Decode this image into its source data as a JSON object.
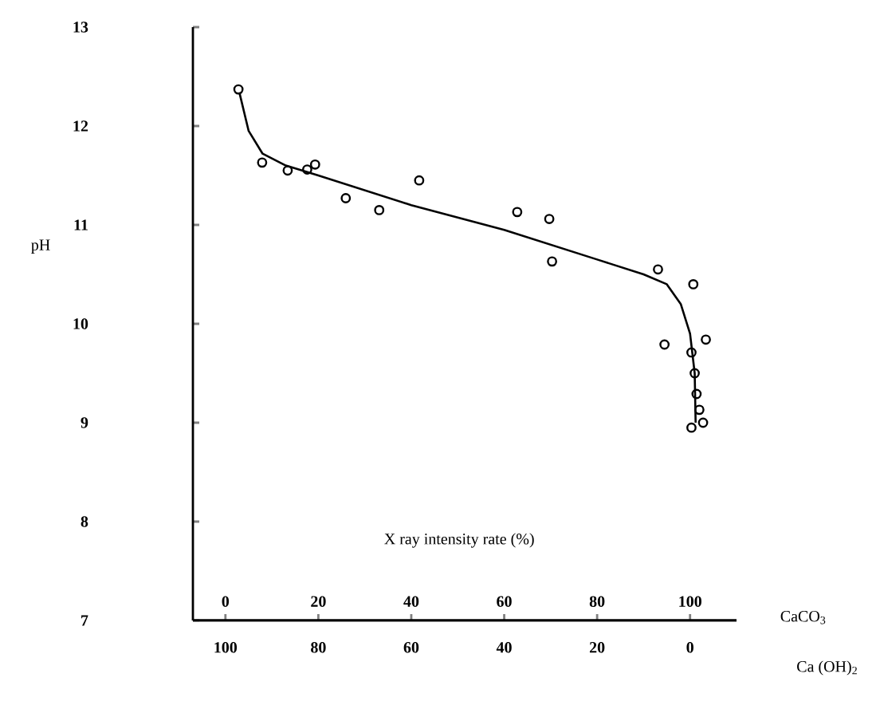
{
  "chart_data": {
    "type": "scatter",
    "xlabel": "CaCO$_{3}$",
    "x2label": "Ca (OH)$_{2}$",
    "ylabel": "pH",
    "annotations": [
      "X ray intensity rate (%)"
    ],
    "xlim": [
      -7,
      110
    ],
    "xticks": [
      0,
      20,
      40,
      60,
      80,
      100
    ],
    "x2lim": [
      107,
      -10
    ],
    "x2ticks": [
      100,
      80,
      60,
      40,
      20,
      0
    ],
    "ylim": [
      7,
      13
    ],
    "yticks": [
      7,
      8,
      9,
      10,
      11,
      12,
      13
    ],
    "series": [
      {
        "color": "#000000",
        "marker": "circle",
        "x": [
          2.8,
          7.9,
          13.4,
          17.6,
          19.3,
          25.9,
          33.1,
          41.7,
          62.8,
          69.7,
          70.3,
          93.1,
          100.7,
          94.5,
          103.4,
          100.3,
          101,
          101.4,
          102,
          102.8,
          100.3
        ],
        "values": [
          12.37,
          11.63,
          11.55,
          11.56,
          11.61,
          11.27,
          11.15,
          11.45,
          11.13,
          11.06,
          10.63,
          10.55,
          10.4,
          9.79,
          9.84,
          9.71,
          9.5,
          9.29,
          9.13,
          9.0,
          8.95
        ]
      },
      {
        "type": "line",
        "color": "#000000",
        "marker": "none",
        "line_style": "solid",
        "x": [
          3,
          5,
          8,
          13,
          20,
          40,
          60,
          80,
          90,
          95,
          98,
          100,
          101,
          101.2
        ],
        "values": [
          12.34,
          11.95,
          11.72,
          11.6,
          11.5,
          11.2,
          10.95,
          10.65,
          10.5,
          10.4,
          10.2,
          9.9,
          9.5,
          9.0
        ]
      }
    ]
  }
}
